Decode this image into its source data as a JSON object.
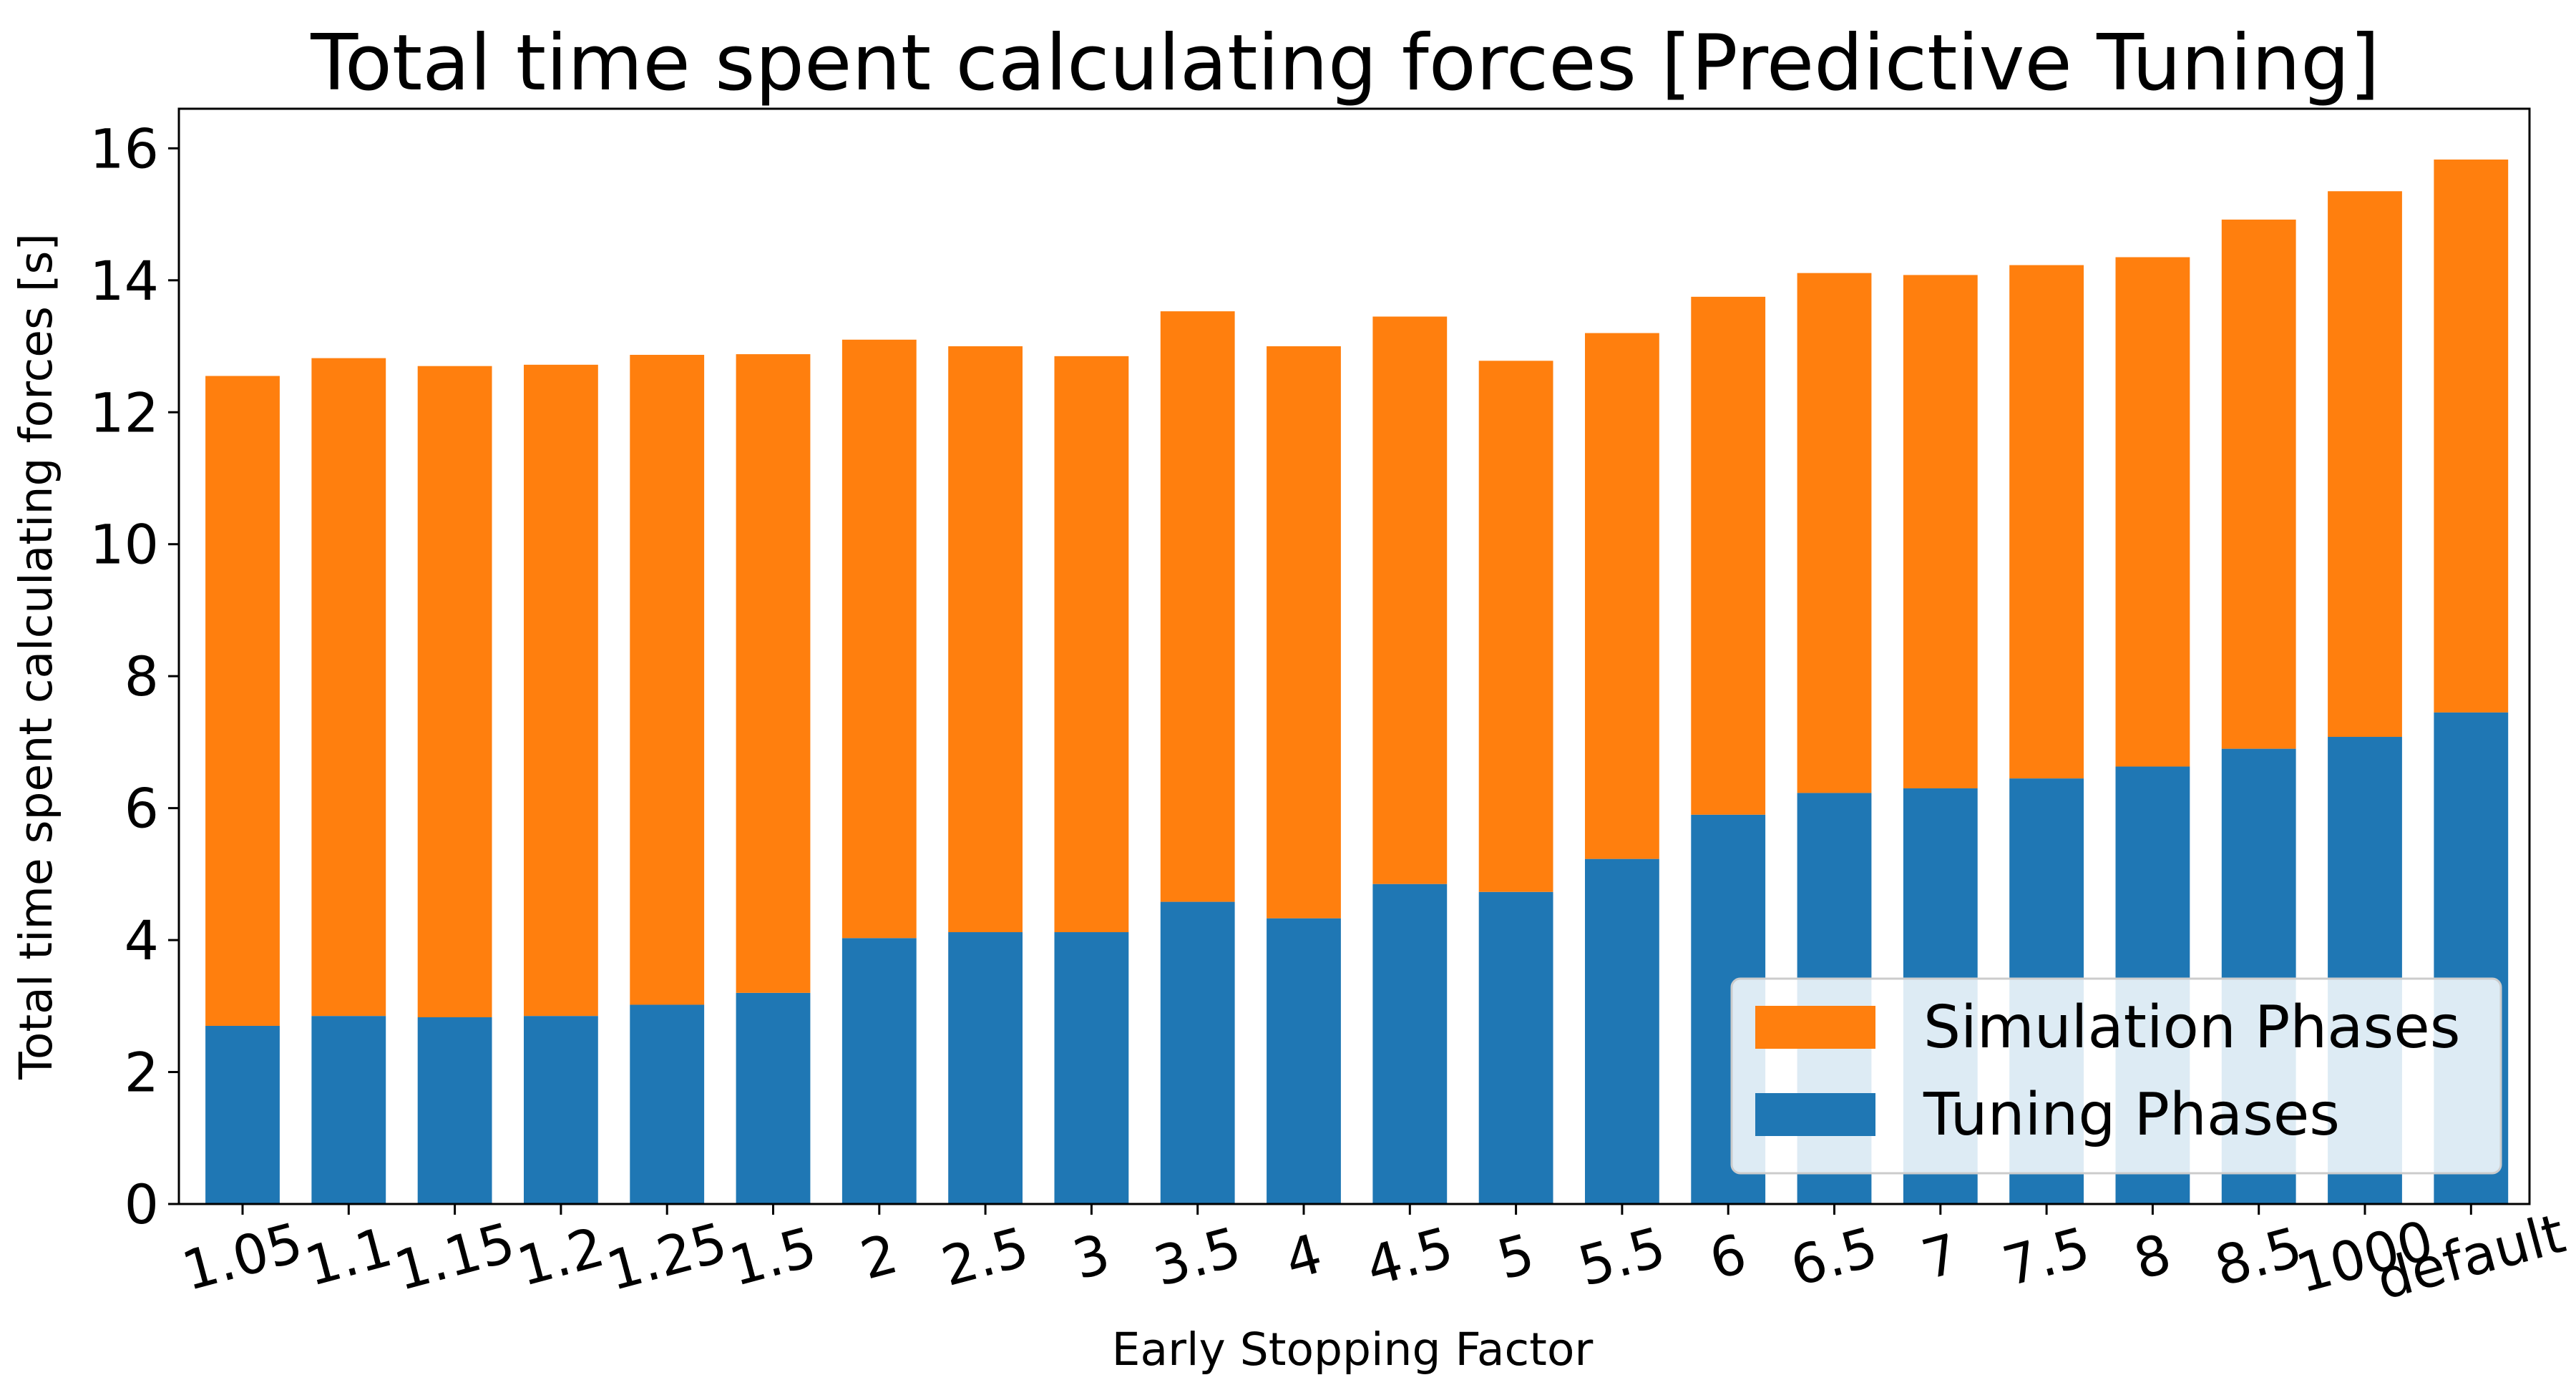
{
  "chart_data": {
    "type": "bar",
    "stacked": true,
    "title": "Total time spent calculating forces [Predictive Tuning]",
    "xlabel": "Early Stopping Factor",
    "ylabel": "Total time spent calculating forces [s]",
    "categories": [
      "1.05",
      "1.1",
      "1.15",
      "1.2",
      "1.25",
      "1.5",
      "2",
      "2.5",
      "3",
      "3.5",
      "4",
      "4.5",
      "5",
      "5.5",
      "6",
      "6.5",
      "7",
      "7.5",
      "8",
      "8.5",
      "1000",
      "default"
    ],
    "series": [
      {
        "name": "Tuning Phases",
        "color": "#1f77b4",
        "values": [
          2.7,
          2.85,
          2.83,
          2.85,
          3.02,
          3.2,
          4.03,
          4.12,
          4.12,
          4.58,
          4.33,
          4.85,
          4.73,
          5.23,
          5.9,
          6.23,
          6.3,
          6.45,
          6.63,
          6.9,
          7.08,
          7.45
        ]
      },
      {
        "name": "Simulation Phases",
        "color": "#ff7f0e",
        "values": [
          9.85,
          9.97,
          9.87,
          9.87,
          9.85,
          9.68,
          9.07,
          8.88,
          8.73,
          8.95,
          8.67,
          8.6,
          8.05,
          7.97,
          7.85,
          7.88,
          7.78,
          7.78,
          7.72,
          8.02,
          8.27,
          8.38
        ]
      }
    ],
    "yticks": [
      "0",
      "2",
      "4",
      "6",
      "8",
      "10",
      "12",
      "14",
      "16"
    ],
    "ylim": [
      0,
      16.6
    ],
    "grid": false,
    "legend_position": "lower right",
    "legend_order": [
      "Simulation Phases",
      "Tuning Phases"
    ]
  }
}
